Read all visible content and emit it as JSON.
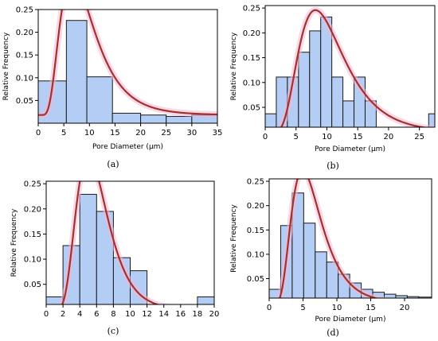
{
  "chart_data": [
    {
      "type": "bar",
      "caption": "(a)",
      "xlabel": "Pore Diameter (μm)",
      "ylabel": "Relative Frequency",
      "xlim": [
        0,
        35
      ],
      "ylim": [
        0,
        0.25
      ],
      "xticks": [
        0,
        5,
        10,
        15,
        20,
        25,
        30,
        35
      ],
      "yticks": [
        0.05,
        0.1,
        0.15,
        0.2,
        0.25
      ],
      "ytick_labels": [
        "0.05",
        "0.10",
        "0.15",
        "0.20",
        "0.25"
      ],
      "bins": [
        [
          0,
          5.5,
          0.093
        ],
        [
          5.5,
          9.5,
          0.226
        ],
        [
          9.5,
          14.5,
          0.102
        ],
        [
          14.5,
          20,
          0.022
        ],
        [
          20,
          25,
          0.018
        ],
        [
          25,
          30,
          0.015
        ],
        [
          30,
          35,
          0.018
        ]
      ],
      "fit_curve": {
        "mu": 2.15,
        "sigma": 0.5,
        "scale": 2.88,
        "floor": 0.018
      },
      "bar_color": "#b3cdf4",
      "curve_color": "#a5322a"
    },
    {
      "type": "bar",
      "caption": "(b)",
      "xlabel": "Pore Diameter (μm)",
      "ylabel": "Relative Frequency",
      "xlim": [
        0,
        27.5
      ],
      "ylim": [
        0.01,
        0.255
      ],
      "xticks": [
        0,
        5,
        10,
        15,
        20,
        25
      ],
      "yticks": [
        0.05,
        0.1,
        0.15,
        0.2,
        0.25
      ],
      "ytick_labels": [
        "0.05",
        "0.10",
        "0.15",
        "0.20",
        "0.25"
      ],
      "bins": [
        [
          0,
          1.8,
          0.037
        ],
        [
          1.8,
          3.6,
          0.111
        ],
        [
          3.6,
          5.4,
          0.111
        ],
        [
          5.4,
          7.2,
          0.161
        ],
        [
          7.2,
          9,
          0.204
        ],
        [
          9,
          10.8,
          0.232
        ],
        [
          10.8,
          12.6,
          0.111
        ],
        [
          12.6,
          14.4,
          0.063
        ],
        [
          14.4,
          16.2,
          0.111
        ],
        [
          16.2,
          18,
          0.063
        ],
        [
          26.5,
          27.5,
          0.037
        ]
      ],
      "fit_curve": {
        "mu": 2.3,
        "sigma": 0.45,
        "scale": 2.5,
        "floor": 0.0
      },
      "bar_color": "#b3cdf4",
      "curve_color": "#a5322a"
    },
    {
      "type": "bar",
      "caption": "(c)",
      "xlabel": "",
      "ylabel": "Relative Frequency",
      "xlim": [
        0,
        20
      ],
      "ylim": [
        0.01,
        0.255
      ],
      "xticks": [
        0,
        2,
        4,
        6,
        8,
        10,
        12,
        14,
        16,
        18,
        20
      ],
      "yticks": [
        0.05,
        0.1,
        0.15,
        0.2,
        0.25
      ],
      "ytick_labels": [
        "0.05",
        "0.10",
        "0.15",
        "0.20",
        "0.25"
      ],
      "bins": [
        [
          0,
          2,
          0.025
        ],
        [
          2,
          4,
          0.127
        ],
        [
          4,
          6,
          0.229
        ],
        [
          6,
          8,
          0.195
        ],
        [
          8,
          10,
          0.103
        ],
        [
          10,
          12,
          0.077
        ],
        [
          18,
          20,
          0.025
        ]
      ],
      "fit_curve": {
        "mu": 1.75,
        "sigma": 0.37,
        "scale": 1.53,
        "floor": 0.0
      },
      "bar_color": "#b3cdf4",
      "curve_color": "#a5322a"
    },
    {
      "type": "bar",
      "caption": "(d)",
      "xlabel": "Pore Diameter (μm)",
      "ylabel": "Relative Frequency",
      "xlim": [
        0,
        24
      ],
      "ylim": [
        0.01,
        0.255
      ],
      "xticks": [
        0,
        5,
        10,
        15,
        20
      ],
      "yticks": [
        0.05,
        0.1,
        0.15,
        0.2,
        0.25
      ],
      "ytick_labels": [
        "0.05",
        "0.10",
        "0.15",
        "0.20",
        "0.25"
      ],
      "bins": [
        [
          0,
          1.7,
          0.028
        ],
        [
          1.7,
          3.4,
          0.159
        ],
        [
          3.4,
          5.1,
          0.226
        ],
        [
          5.1,
          6.8,
          0.164
        ],
        [
          6.8,
          8.5,
          0.105
        ],
        [
          8.5,
          10.2,
          0.084
        ],
        [
          10.2,
          11.9,
          0.059
        ],
        [
          11.9,
          13.6,
          0.041
        ],
        [
          13.6,
          15.3,
          0.028
        ],
        [
          15.3,
          17,
          0.022
        ],
        [
          17,
          18.7,
          0.018
        ],
        [
          18.7,
          20.4,
          0.015
        ],
        [
          20.4,
          22.1,
          0.013
        ],
        [
          22.1,
          24,
          0.012
        ]
      ],
      "fit_curve": {
        "mu": 1.8,
        "sigma": 0.45,
        "scale": 1.68,
        "floor": 0.0
      },
      "bar_color": "#b3cdf4",
      "curve_color": "#a5322a"
    }
  ]
}
